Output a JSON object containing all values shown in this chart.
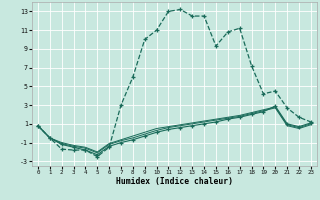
{
  "xlabel": "Humidex (Indice chaleur)",
  "ylabel": "",
  "xlim": [
    -0.5,
    23.5
  ],
  "ylim": [
    -3.5,
    14.0
  ],
  "yticks": [
    -3,
    -1,
    1,
    3,
    5,
    7,
    9,
    11,
    13
  ],
  "xticks": [
    0,
    1,
    2,
    3,
    4,
    5,
    6,
    7,
    8,
    9,
    10,
    11,
    12,
    13,
    14,
    15,
    16,
    17,
    18,
    19,
    20,
    21,
    22,
    23
  ],
  "background_color": "#c8e8df",
  "grid_color": "#ffffff",
  "line_color": "#1a6b5a",
  "series": [
    {
      "x": [
        0,
        1,
        2,
        3,
        4,
        5,
        6,
        7,
        8,
        9,
        10,
        11,
        12,
        13,
        14,
        15,
        16,
        17,
        18,
        19,
        20,
        21,
        22,
        23
      ],
      "y": [
        0.8,
        -0.5,
        -1.7,
        -1.8,
        -1.8,
        -2.5,
        -1.5,
        3.0,
        6.0,
        10.0,
        11.0,
        13.0,
        13.2,
        12.5,
        12.5,
        9.3,
        10.8,
        11.2,
        7.2,
        4.2,
        4.5,
        2.7,
        1.7,
        1.2
      ],
      "marker": "+",
      "linestyle": "--",
      "linewidth": 0.9,
      "markersize": 3.5
    },
    {
      "x": [
        0,
        1,
        2,
        3,
        4,
        5,
        6,
        7,
        8,
        9,
        10,
        11,
        12,
        13,
        14,
        15,
        16,
        17,
        18,
        19,
        20,
        21,
        22,
        23
      ],
      "y": [
        0.8,
        -0.5,
        -1.2,
        -1.5,
        -1.8,
        -2.3,
        -1.4,
        -1.0,
        -0.7,
        -0.3,
        0.1,
        0.4,
        0.6,
        0.8,
        1.0,
        1.2,
        1.5,
        1.7,
        2.0,
        2.3,
        2.9,
        1.0,
        0.7,
        1.1
      ],
      "marker": "+",
      "linestyle": "-",
      "linewidth": 0.8,
      "markersize": 2.5
    },
    {
      "x": [
        0,
        1,
        2,
        3,
        4,
        5,
        6,
        7,
        8,
        9,
        10,
        11,
        12,
        13,
        14,
        15,
        16,
        17,
        18,
        19,
        20,
        21,
        22,
        23
      ],
      "y": [
        0.8,
        -0.5,
        -1.1,
        -1.4,
        -1.6,
        -2.1,
        -1.2,
        -0.8,
        -0.5,
        -0.1,
        0.3,
        0.6,
        0.8,
        1.0,
        1.2,
        1.4,
        1.6,
        1.8,
        2.1,
        2.4,
        2.7,
        0.8,
        0.5,
        0.9
      ],
      "marker": null,
      "linestyle": "-",
      "linewidth": 0.7,
      "markersize": 0
    },
    {
      "x": [
        0,
        1,
        2,
        3,
        4,
        5,
        6,
        7,
        8,
        9,
        10,
        11,
        12,
        13,
        14,
        15,
        16,
        17,
        18,
        19,
        20,
        21,
        22,
        23
      ],
      "y": [
        0.8,
        -0.5,
        -1.0,
        -1.3,
        -1.5,
        -2.0,
        -1.1,
        -0.7,
        -0.3,
        0.1,
        0.5,
        0.7,
        0.9,
        1.1,
        1.3,
        1.5,
        1.7,
        1.9,
        2.2,
        2.5,
        2.8,
        0.9,
        0.6,
        1.0
      ],
      "marker": null,
      "linestyle": "-",
      "linewidth": 0.7,
      "markersize": 0
    }
  ]
}
